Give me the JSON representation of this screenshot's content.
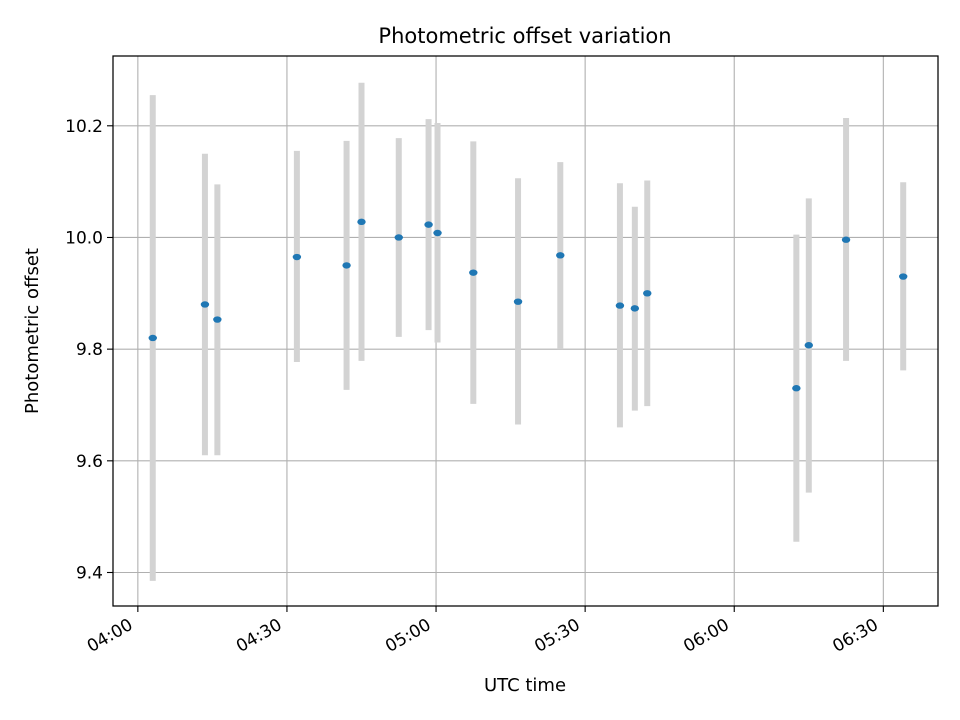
{
  "chart_data": {
    "type": "scatter",
    "title": "Photometric offset variation",
    "xlabel": "UTC time",
    "ylabel": "Photometric offset",
    "x_ticks": [
      "04:00",
      "04:30",
      "05:00",
      "05:30",
      "06:00",
      "06:30"
    ],
    "y_ticks": [
      "9.4",
      "9.6",
      "9.8",
      "10.0",
      "10.2"
    ],
    "xlim": [
      "03:55",
      "06:41"
    ],
    "ylim": [
      9.34,
      10.325
    ],
    "grid": true,
    "marker_color": "#1f77b4",
    "errorbar_color": "#d3d3d3",
    "series": [
      {
        "points": [
          {
            "t": "04:03",
            "y": 9.82,
            "ylow": 9.385,
            "yhigh": 10.255
          },
          {
            "t": "04:13.5",
            "y": 9.88,
            "ylow": 9.61,
            "yhigh": 10.15
          },
          {
            "t": "04:16",
            "y": 9.853,
            "ylow": 9.61,
            "yhigh": 10.095
          },
          {
            "t": "04:32",
            "y": 9.965,
            "ylow": 9.777,
            "yhigh": 10.155
          },
          {
            "t": "04:42",
            "y": 9.95,
            "ylow": 9.727,
            "yhigh": 10.173
          },
          {
            "t": "04:45",
            "y": 10.028,
            "ylow": 9.779,
            "yhigh": 10.277
          },
          {
            "t": "04:52.5",
            "y": 10.0,
            "ylow": 9.822,
            "yhigh": 10.178
          },
          {
            "t": "04:58.5",
            "y": 10.023,
            "ylow": 9.834,
            "yhigh": 10.212
          },
          {
            "t": "05:00.3",
            "y": 10.008,
            "ylow": 9.812,
            "yhigh": 10.205
          },
          {
            "t": "05:07.5",
            "y": 9.937,
            "ylow": 9.702,
            "yhigh": 10.172
          },
          {
            "t": "05:16.5",
            "y": 9.885,
            "ylow": 9.665,
            "yhigh": 10.106
          },
          {
            "t": "05:25",
            "y": 9.968,
            "ylow": 9.8,
            "yhigh": 10.135
          },
          {
            "t": "05:37",
            "y": 9.878,
            "ylow": 9.66,
            "yhigh": 10.097
          },
          {
            "t": "05:40",
            "y": 9.873,
            "ylow": 9.69,
            "yhigh": 10.055
          },
          {
            "t": "05:42.5",
            "y": 9.9,
            "ylow": 9.698,
            "yhigh": 10.102
          },
          {
            "t": "06:12.5",
            "y": 9.73,
            "ylow": 9.455,
            "yhigh": 10.005
          },
          {
            "t": "06:15",
            "y": 9.807,
            "ylow": 9.543,
            "yhigh": 10.07
          },
          {
            "t": "06:22.5",
            "y": 9.996,
            "ylow": 9.779,
            "yhigh": 10.214
          },
          {
            "t": "06:34",
            "y": 9.93,
            "ylow": 9.762,
            "yhigh": 10.099
          }
        ]
      }
    ]
  }
}
